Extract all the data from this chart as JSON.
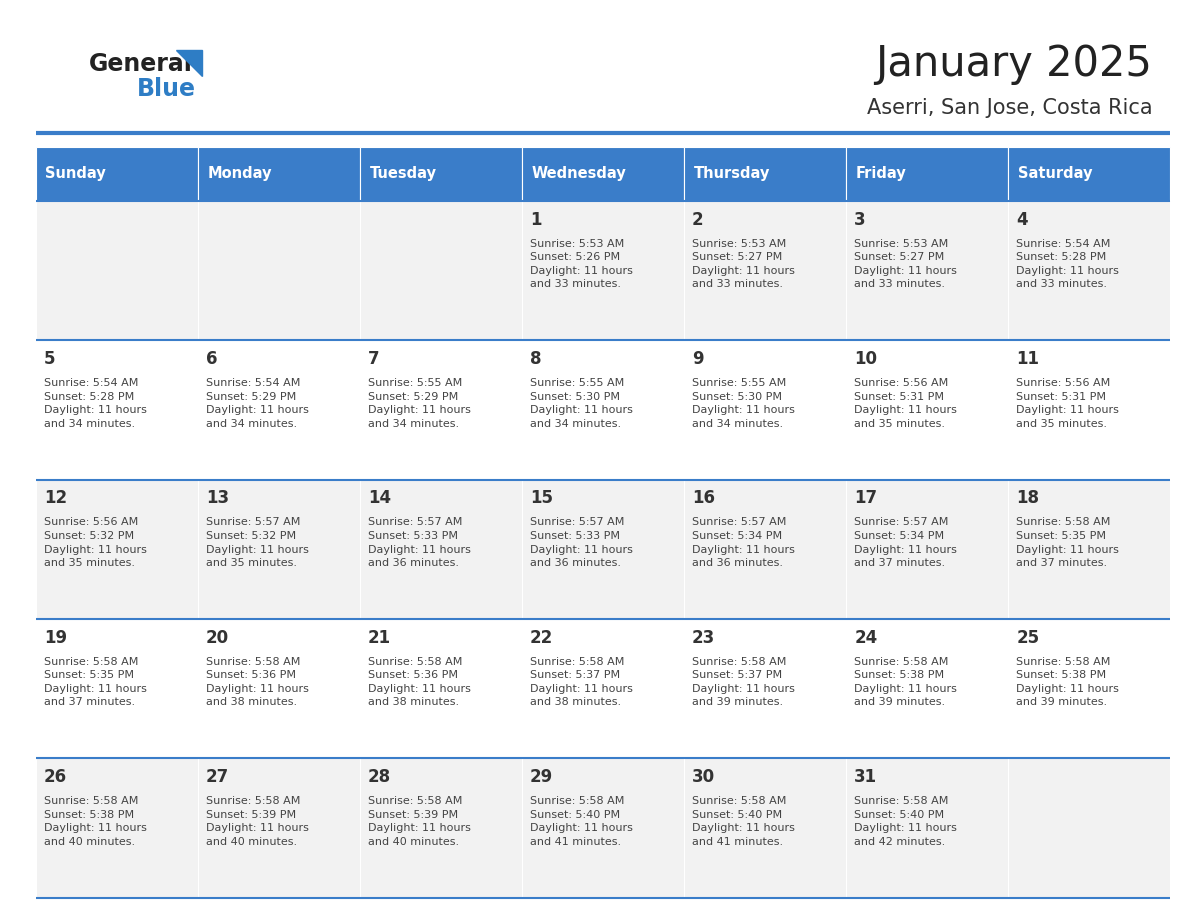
{
  "title": "January 2025",
  "subtitle": "Aserri, San Jose, Costa Rica",
  "days_of_week": [
    "Sunday",
    "Monday",
    "Tuesday",
    "Wednesday",
    "Thursday",
    "Friday",
    "Saturday"
  ],
  "header_bg": "#3A7DC9",
  "header_text": "#FFFFFF",
  "odd_row_bg": "#F2F2F2",
  "even_row_bg": "#FFFFFF",
  "line_color": "#3A7DC9",
  "day_num_color": "#333333",
  "cell_text_color": "#444444",
  "title_color": "#222222",
  "subtitle_color": "#333333",
  "logo_general_color": "#222222",
  "logo_blue_color": "#2E7DC5",
  "calendar": [
    [
      {
        "day": "",
        "sunrise": "",
        "sunset": "",
        "daylight": ""
      },
      {
        "day": "",
        "sunrise": "",
        "sunset": "",
        "daylight": ""
      },
      {
        "day": "",
        "sunrise": "",
        "sunset": "",
        "daylight": ""
      },
      {
        "day": "1",
        "sunrise": "5:53 AM",
        "sunset": "5:26 PM",
        "daylight": "11 hours and 33 minutes."
      },
      {
        "day": "2",
        "sunrise": "5:53 AM",
        "sunset": "5:27 PM",
        "daylight": "11 hours and 33 minutes."
      },
      {
        "day": "3",
        "sunrise": "5:53 AM",
        "sunset": "5:27 PM",
        "daylight": "11 hours and 33 minutes."
      },
      {
        "day": "4",
        "sunrise": "5:54 AM",
        "sunset": "5:28 PM",
        "daylight": "11 hours and 33 minutes."
      }
    ],
    [
      {
        "day": "5",
        "sunrise": "5:54 AM",
        "sunset": "5:28 PM",
        "daylight": "11 hours and 34 minutes."
      },
      {
        "day": "6",
        "sunrise": "5:54 AM",
        "sunset": "5:29 PM",
        "daylight": "11 hours and 34 minutes."
      },
      {
        "day": "7",
        "sunrise": "5:55 AM",
        "sunset": "5:29 PM",
        "daylight": "11 hours and 34 minutes."
      },
      {
        "day": "8",
        "sunrise": "5:55 AM",
        "sunset": "5:30 PM",
        "daylight": "11 hours and 34 minutes."
      },
      {
        "day": "9",
        "sunrise": "5:55 AM",
        "sunset": "5:30 PM",
        "daylight": "11 hours and 34 minutes."
      },
      {
        "day": "10",
        "sunrise": "5:56 AM",
        "sunset": "5:31 PM",
        "daylight": "11 hours and 35 minutes."
      },
      {
        "day": "11",
        "sunrise": "5:56 AM",
        "sunset": "5:31 PM",
        "daylight": "11 hours and 35 minutes."
      }
    ],
    [
      {
        "day": "12",
        "sunrise": "5:56 AM",
        "sunset": "5:32 PM",
        "daylight": "11 hours and 35 minutes."
      },
      {
        "day": "13",
        "sunrise": "5:57 AM",
        "sunset": "5:32 PM",
        "daylight": "11 hours and 35 minutes."
      },
      {
        "day": "14",
        "sunrise": "5:57 AM",
        "sunset": "5:33 PM",
        "daylight": "11 hours and 36 minutes."
      },
      {
        "day": "15",
        "sunrise": "5:57 AM",
        "sunset": "5:33 PM",
        "daylight": "11 hours and 36 minutes."
      },
      {
        "day": "16",
        "sunrise": "5:57 AM",
        "sunset": "5:34 PM",
        "daylight": "11 hours and 36 minutes."
      },
      {
        "day": "17",
        "sunrise": "5:57 AM",
        "sunset": "5:34 PM",
        "daylight": "11 hours and 37 minutes."
      },
      {
        "day": "18",
        "sunrise": "5:58 AM",
        "sunset": "5:35 PM",
        "daylight": "11 hours and 37 minutes."
      }
    ],
    [
      {
        "day": "19",
        "sunrise": "5:58 AM",
        "sunset": "5:35 PM",
        "daylight": "11 hours and 37 minutes."
      },
      {
        "day": "20",
        "sunrise": "5:58 AM",
        "sunset": "5:36 PM",
        "daylight": "11 hours and 38 minutes."
      },
      {
        "day": "21",
        "sunrise": "5:58 AM",
        "sunset": "5:36 PM",
        "daylight": "11 hours and 38 minutes."
      },
      {
        "day": "22",
        "sunrise": "5:58 AM",
        "sunset": "5:37 PM",
        "daylight": "11 hours and 38 minutes."
      },
      {
        "day": "23",
        "sunrise": "5:58 AM",
        "sunset": "5:37 PM",
        "daylight": "11 hours and 39 minutes."
      },
      {
        "day": "24",
        "sunrise": "5:58 AM",
        "sunset": "5:38 PM",
        "daylight": "11 hours and 39 minutes."
      },
      {
        "day": "25",
        "sunrise": "5:58 AM",
        "sunset": "5:38 PM",
        "daylight": "11 hours and 39 minutes."
      }
    ],
    [
      {
        "day": "26",
        "sunrise": "5:58 AM",
        "sunset": "5:38 PM",
        "daylight": "11 hours and 40 minutes."
      },
      {
        "day": "27",
        "sunrise": "5:58 AM",
        "sunset": "5:39 PM",
        "daylight": "11 hours and 40 minutes."
      },
      {
        "day": "28",
        "sunrise": "5:58 AM",
        "sunset": "5:39 PM",
        "daylight": "11 hours and 40 minutes."
      },
      {
        "day": "29",
        "sunrise": "5:58 AM",
        "sunset": "5:40 PM",
        "daylight": "11 hours and 41 minutes."
      },
      {
        "day": "30",
        "sunrise": "5:58 AM",
        "sunset": "5:40 PM",
        "daylight": "11 hours and 41 minutes."
      },
      {
        "day": "31",
        "sunrise": "5:58 AM",
        "sunset": "5:40 PM",
        "daylight": "11 hours and 42 minutes."
      },
      {
        "day": "",
        "sunrise": "",
        "sunset": "",
        "daylight": ""
      }
    ]
  ]
}
